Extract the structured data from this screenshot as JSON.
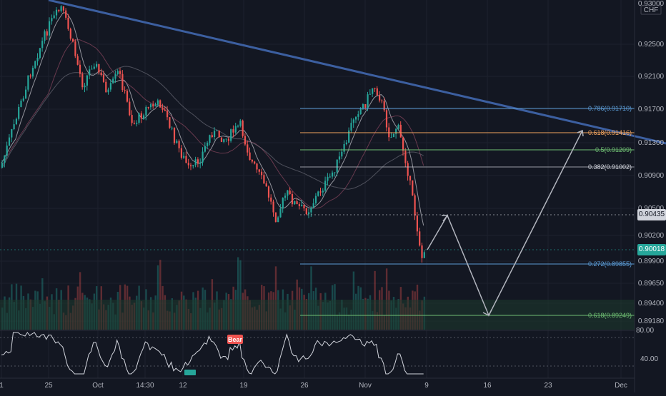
{
  "currency": "CHF",
  "price_axis": {
    "top_label": "0.93000",
    "labels": [
      "0.92500",
      "0.92100",
      "0.91700",
      "0.91300",
      "0.90900",
      "0.90500",
      "0.90200",
      "0.89900",
      "0.89650",
      "0.89400",
      "0.89180"
    ],
    "current_price": "0.90435",
    "last_price": "0.90018"
  },
  "time_axis": {
    "labels": [
      "1",
      "25",
      "Oct",
      "14:30",
      "12",
      "19",
      "26",
      "Nov",
      "9",
      "16",
      "23",
      "Dec"
    ]
  },
  "fib_levels": [
    {
      "label": "0.786(0.91710)",
      "color": "#5b9bd5"
    },
    {
      "label": "0.618(0.91416)",
      "color": "#f0a35e"
    },
    {
      "label": "0.5(0.91209)",
      "color": "#6fbf73"
    },
    {
      "label": "0.382(0.91002)",
      "color": "#d1d4dc"
    },
    {
      "label": "0.272(0.89855)",
      "color": "#5b9bd5"
    },
    {
      "label": "0.618(0.89249)",
      "color": "#6fbf73"
    }
  ],
  "oscillator": {
    "labels": [
      "80.00",
      "40.00"
    ],
    "badge": "Bear"
  },
  "colors": {
    "bull": "#26a69a",
    "bear": "#ef5350",
    "trendline": "#3c5fa0",
    "projection": "#b2b5be",
    "background": "#131722"
  }
}
